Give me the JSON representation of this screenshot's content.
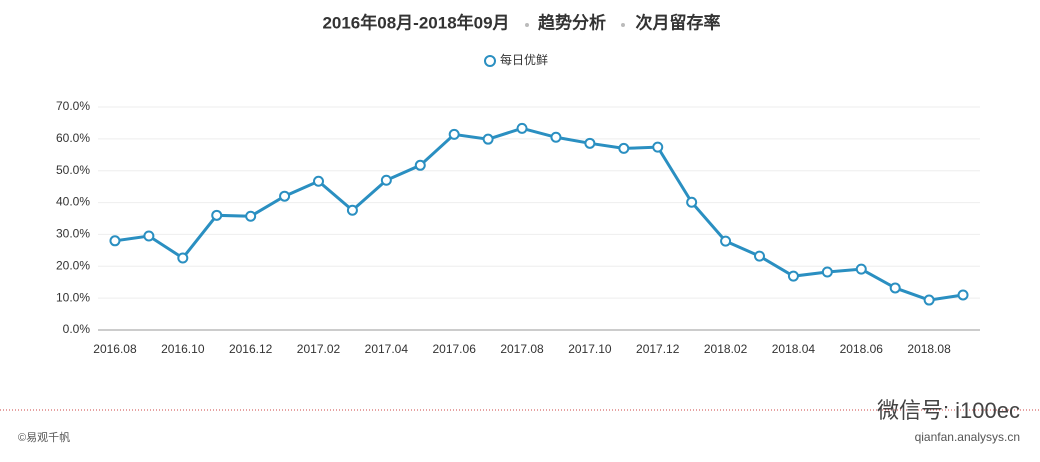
{
  "chart_data": {
    "type": "line",
    "title": [
      "2016年08月-2018年09月",
      "趋势分析",
      "次月留存率"
    ],
    "categories": [
      "2016.08",
      null,
      "2016.10",
      null,
      "2016.12",
      null,
      "2017.02",
      null,
      "2017.04",
      null,
      "2017.06",
      null,
      "2017.08",
      null,
      "2017.10",
      null,
      "2017.12",
      null,
      "2018.02",
      null,
      "2018.04",
      null,
      "2018.06",
      null,
      "2018.08",
      null
    ],
    "series": [
      {
        "name": "每日优鲜",
        "color": "#2a8fc1",
        "values": [
          28,
          29.5,
          22.6,
          36,
          35.7,
          42,
          46.7,
          37.6,
          47,
          51.7,
          61.4,
          59.9,
          63.3,
          60.5,
          58.6,
          57,
          57.4,
          40.1,
          27.9,
          23.2,
          16.9,
          18.2,
          19.1,
          13.2,
          9.4,
          11
        ]
      }
    ],
    "ylim": [
      0,
      70
    ],
    "yticks": [
      {
        "value": 0,
        "label": "0.0%"
      },
      {
        "value": 10,
        "label": "10.0%"
      },
      {
        "value": 20,
        "label": "20.0%"
      },
      {
        "value": 30,
        "label": "30.0%"
      },
      {
        "value": 40,
        "label": "40.0%"
      },
      {
        "value": 50,
        "label": "50.0%"
      },
      {
        "value": 60,
        "label": "60.0%"
      },
      {
        "value": 70,
        "label": "70.0%"
      }
    ],
    "grid": true,
    "legend": "top"
  },
  "footer": {
    "source": "©易观千帆",
    "watermark": "微信号: i100ec",
    "site": "qianfan.analysys.cn"
  }
}
